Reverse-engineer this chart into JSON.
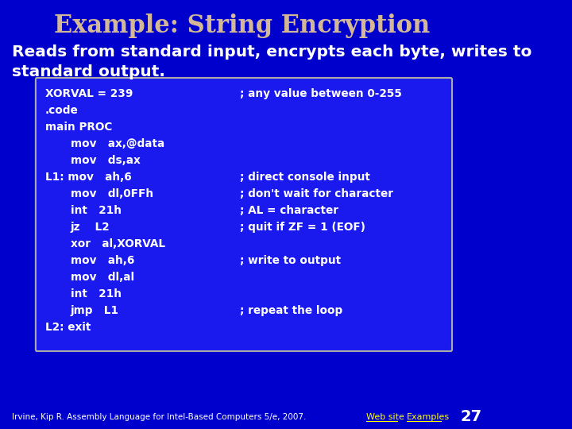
{
  "title": "Example: String Encryption",
  "subtitle": "Reads from standard input, encrypts each byte, writes to\nstandard output.",
  "bg_color": "#0000cc",
  "title_color": "#d4b896",
  "subtitle_color": "#ffffff",
  "code_bg": "#1a1aee",
  "code_border": "#aaaaaa",
  "code_text_color": "#ffffff",
  "comment_color": "#ffffff",
  "footer_left": "Irvine, Kip R. Assembly Language for Intel-Based Computers 5/e, 2007.",
  "footer_links": [
    "Web site",
    "Examples"
  ],
  "footer_number": "27",
  "footer_color": "#ffffff",
  "footer_link_color": "#ffff00",
  "code_lines": [
    {
      "indent": 0,
      "code": "XORVAL = 239",
      "comment": "; any value between 0-255"
    },
    {
      "indent": 0,
      "code": ".code",
      "comment": ""
    },
    {
      "indent": 0,
      "code": "main PROC",
      "comment": ""
    },
    {
      "indent": 1,
      "code": "mov   ax,@data",
      "comment": ""
    },
    {
      "indent": 1,
      "code": "mov   ds,ax",
      "comment": ""
    },
    {
      "indent": 0,
      "code": "L1: mov   ah,6",
      "comment": "; direct console input"
    },
    {
      "indent": 1,
      "code": "mov   dl,0FFh",
      "comment": "; don't wait for character"
    },
    {
      "indent": 1,
      "code": "int   21h",
      "comment": "; AL = character"
    },
    {
      "indent": 1,
      "code": "jz    L2",
      "comment": "; quit if ZF = 1 (EOF)"
    },
    {
      "indent": 1,
      "code": "xor   al,XORVAL",
      "comment": ""
    },
    {
      "indent": 1,
      "code": "mov   ah,6",
      "comment": "; write to output"
    },
    {
      "indent": 1,
      "code": "mov   dl,al",
      "comment": ""
    },
    {
      "indent": 1,
      "code": "int   21h",
      "comment": ""
    },
    {
      "indent": 1,
      "code": "jmp   L1",
      "comment": "; repeat the loop"
    },
    {
      "indent": 0,
      "code": "L2: exit",
      "comment": ""
    }
  ]
}
